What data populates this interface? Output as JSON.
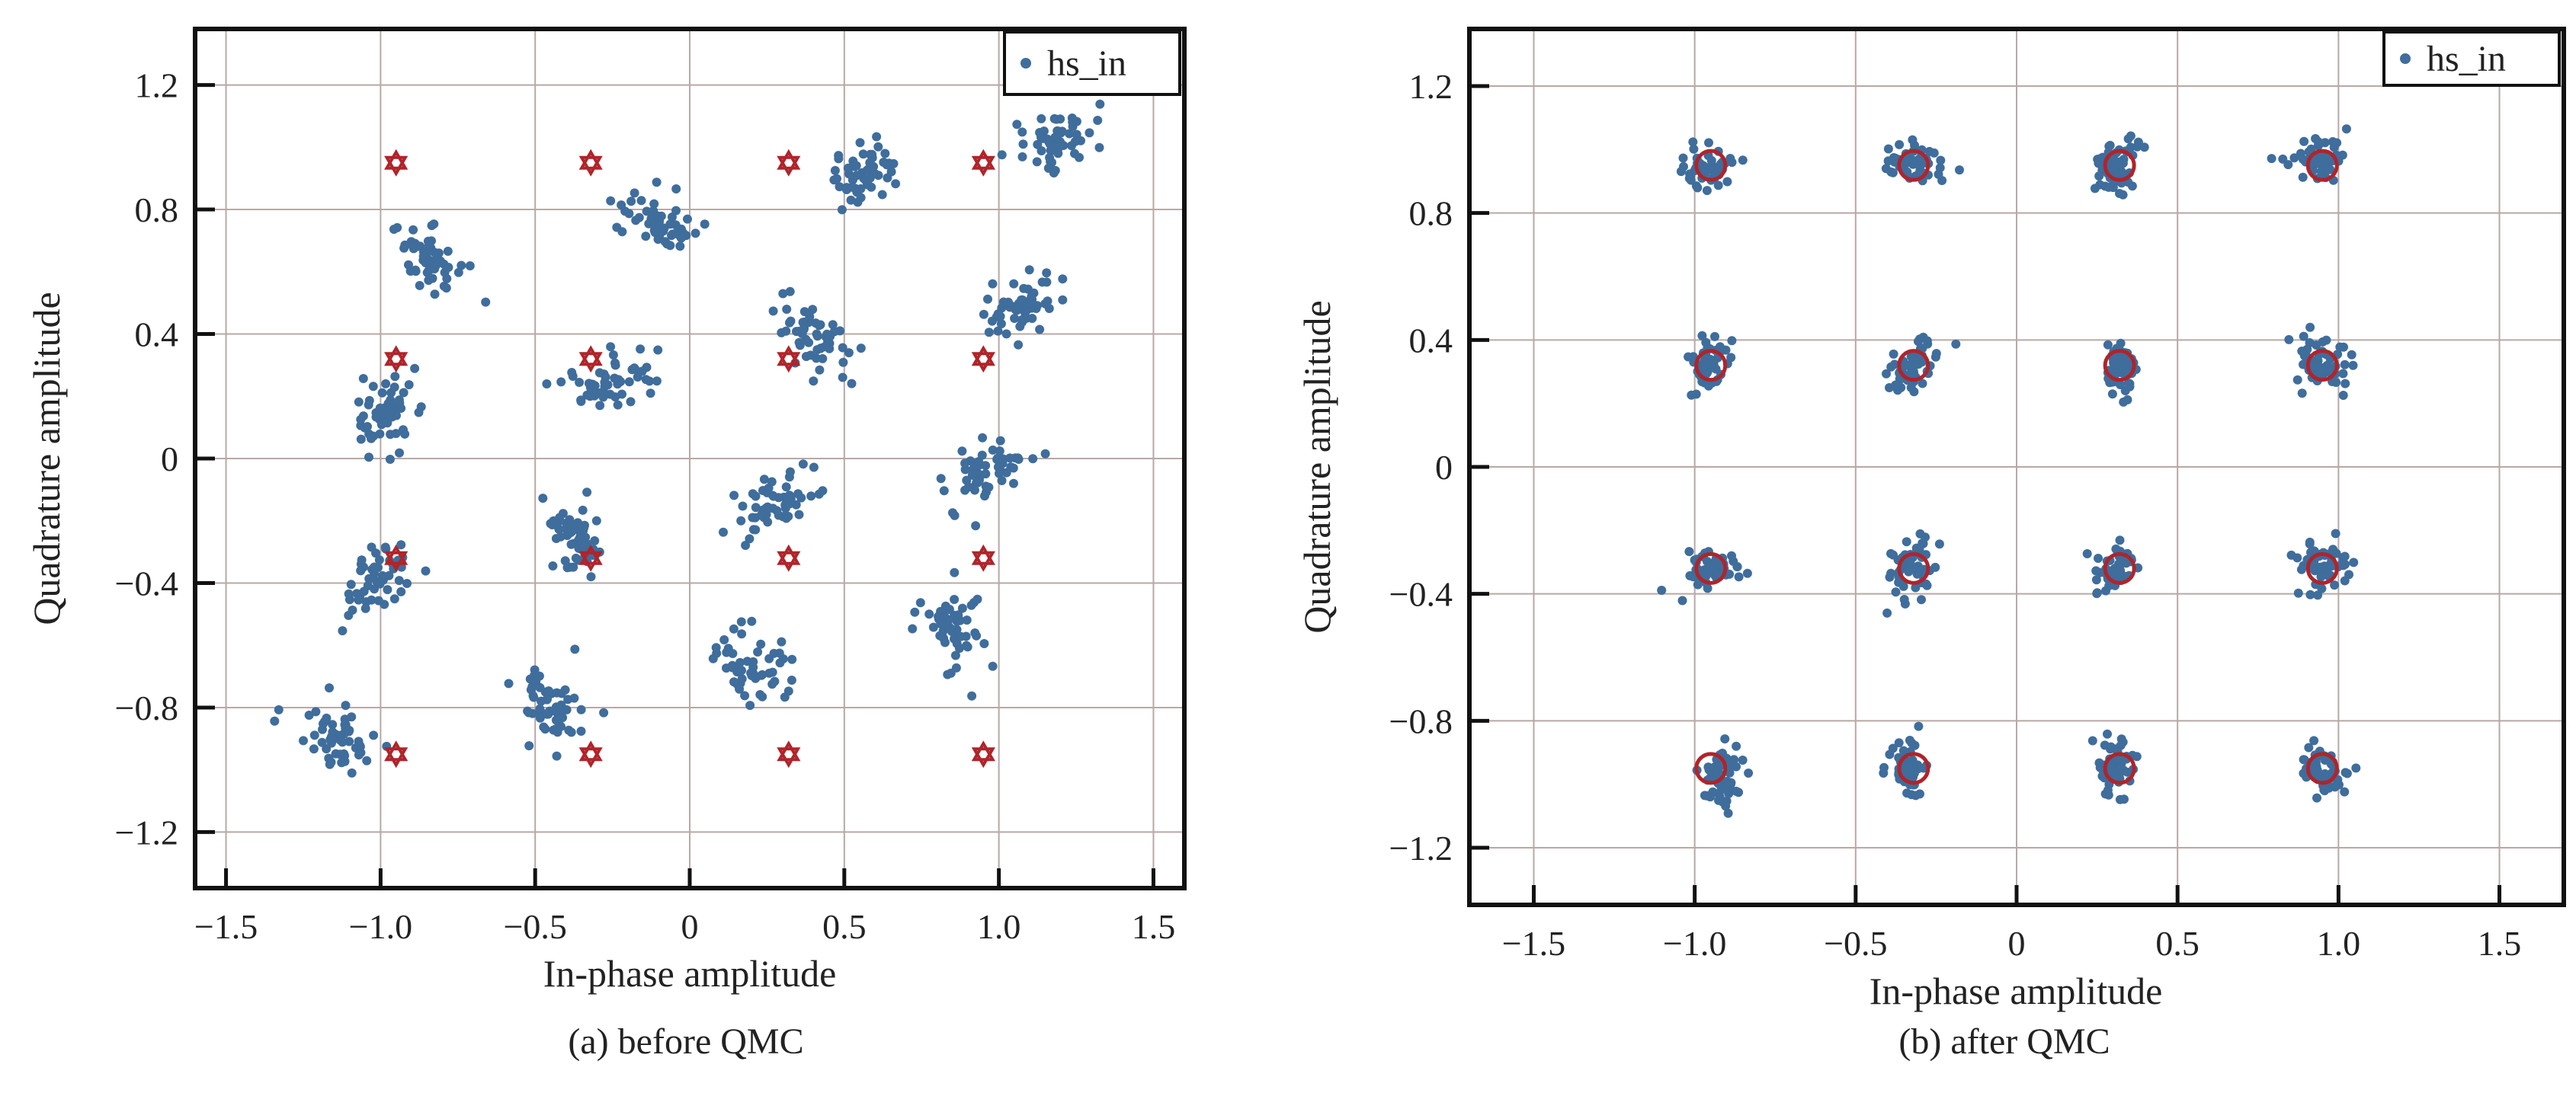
{
  "chart_data": [
    {
      "type": "scatter",
      "caption": "(a) before QMC",
      "xlabel": "In-phase amplitude",
      "ylabel": "Quadrature amplitude",
      "xlim": [
        -1.6,
        1.6
      ],
      "ylim": [
        -1.38,
        1.38
      ],
      "xticks": [
        -1.5,
        -1.0,
        -0.5,
        0,
        0.5,
        1.0,
        1.5
      ],
      "xtick_labels": [
        "−1.5",
        "−1.0",
        "−0.5",
        "0",
        "0.5",
        "1.0",
        "1.5"
      ],
      "yticks": [
        -1.2,
        -0.8,
        -0.4,
        0,
        0.4,
        0.8,
        1.2
      ],
      "ytick_labels": [
        "−1.2",
        "−0.8",
        "−0.4",
        "0",
        "0.4",
        "0.8",
        "1.2"
      ],
      "grid": true,
      "legend": {
        "position": "top-right",
        "entries": [
          "hs_in"
        ]
      },
      "series": [
        {
          "name": "hs_in",
          "marker": "dot",
          "color": "#3f6d9c",
          "clusters": [
            {
              "x": -1.15,
              "y": -0.9
            },
            {
              "x": -1.02,
              "y": -0.38
            },
            {
              "x": -1.0,
              "y": 0.13
            },
            {
              "x": -0.83,
              "y": 0.64
            },
            {
              "x": -0.45,
              "y": -0.8
            },
            {
              "x": -0.36,
              "y": -0.27
            },
            {
              "x": -0.25,
              "y": 0.25
            },
            {
              "x": -0.12,
              "y": 0.77
            },
            {
              "x": 0.2,
              "y": -0.65
            },
            {
              "x": 0.28,
              "y": -0.15
            },
            {
              "x": 0.42,
              "y": 0.38
            },
            {
              "x": 0.55,
              "y": 0.9
            },
            {
              "x": 0.87,
              "y": -0.55
            },
            {
              "x": 0.98,
              "y": -0.03
            },
            {
              "x": 1.08,
              "y": 0.49
            },
            {
              "x": 1.18,
              "y": 1.02
            }
          ]
        },
        {
          "name": "",
          "marker": "hexagram",
          "color": "#b0242a",
          "points": [
            {
              "x": -0.95,
              "y": 0.95
            },
            {
              "x": -0.32,
              "y": 0.95
            },
            {
              "x": 0.32,
              "y": 0.95
            },
            {
              "x": 0.95,
              "y": 0.95
            },
            {
              "x": -0.95,
              "y": 0.32
            },
            {
              "x": -0.32,
              "y": 0.32
            },
            {
              "x": 0.32,
              "y": 0.32
            },
            {
              "x": 0.95,
              "y": 0.32
            },
            {
              "x": -0.95,
              "y": -0.32
            },
            {
              "x": -0.32,
              "y": -0.32
            },
            {
              "x": 0.32,
              "y": -0.32
            },
            {
              "x": 0.95,
              "y": -0.32
            },
            {
              "x": -0.95,
              "y": -0.95
            },
            {
              "x": -0.32,
              "y": -0.95
            },
            {
              "x": 0.32,
              "y": -0.95
            },
            {
              "x": 0.95,
              "y": -0.95
            }
          ]
        }
      ]
    },
    {
      "type": "scatter",
      "caption": "(b) after QMC",
      "xlabel": "In-phase amplitude",
      "ylabel": "Quadrature amplitude",
      "xlim": [
        -1.7,
        1.7
      ],
      "ylim": [
        -1.38,
        1.38
      ],
      "xticks": [
        -1.5,
        -1.0,
        -0.5,
        0,
        0.5,
        1.0,
        1.5
      ],
      "xtick_labels": [
        "−1.5",
        "−1.0",
        "−0.5",
        "0",
        "0.5",
        "1.0",
        "1.5"
      ],
      "yticks": [
        -1.2,
        -0.8,
        -0.4,
        0,
        0.4,
        0.8,
        1.2
      ],
      "ytick_labels": [
        "−1.2",
        "−0.8",
        "−0.4",
        "0",
        "0.4",
        "0.8",
        "1.2"
      ],
      "grid": true,
      "legend": {
        "position": "top-right",
        "entries": [
          "hs_in"
        ]
      },
      "series": [
        {
          "name": "hs_in",
          "marker": "dot",
          "color": "#3f6d9c",
          "clusters": [
            {
              "x": -0.96,
              "y": 0.95
            },
            {
              "x": -0.32,
              "y": 0.96
            },
            {
              "x": 0.31,
              "y": 0.95
            },
            {
              "x": 0.93,
              "y": 0.97
            },
            {
              "x": -0.96,
              "y": 0.32
            },
            {
              "x": -0.32,
              "y": 0.32
            },
            {
              "x": 0.32,
              "y": 0.31
            },
            {
              "x": 0.95,
              "y": 0.33
            },
            {
              "x": -0.95,
              "y": -0.32
            },
            {
              "x": -0.32,
              "y": -0.32
            },
            {
              "x": 0.31,
              "y": -0.32
            },
            {
              "x": 0.95,
              "y": -0.31
            },
            {
              "x": -0.92,
              "y": -0.97
            },
            {
              "x": -0.33,
              "y": -0.95
            },
            {
              "x": 0.31,
              "y": -0.95
            },
            {
              "x": 0.95,
              "y": -0.95
            }
          ]
        },
        {
          "name": "",
          "marker": "circle",
          "color": "#b0242a",
          "points": [
            {
              "x": -0.95,
              "y": 0.95
            },
            {
              "x": -0.32,
              "y": 0.95
            },
            {
              "x": 0.32,
              "y": 0.95
            },
            {
              "x": 0.95,
              "y": 0.95
            },
            {
              "x": -0.95,
              "y": 0.32
            },
            {
              "x": -0.32,
              "y": 0.32
            },
            {
              "x": 0.32,
              "y": 0.32
            },
            {
              "x": 0.95,
              "y": 0.32
            },
            {
              "x": -0.95,
              "y": -0.32
            },
            {
              "x": -0.32,
              "y": -0.32
            },
            {
              "x": 0.32,
              "y": -0.32
            },
            {
              "x": 0.95,
              "y": -0.32
            },
            {
              "x": -0.95,
              "y": -0.95
            },
            {
              "x": -0.32,
              "y": -0.95
            },
            {
              "x": 0.32,
              "y": -0.95
            },
            {
              "x": 0.95,
              "y": -0.95
            }
          ]
        }
      ]
    }
  ]
}
